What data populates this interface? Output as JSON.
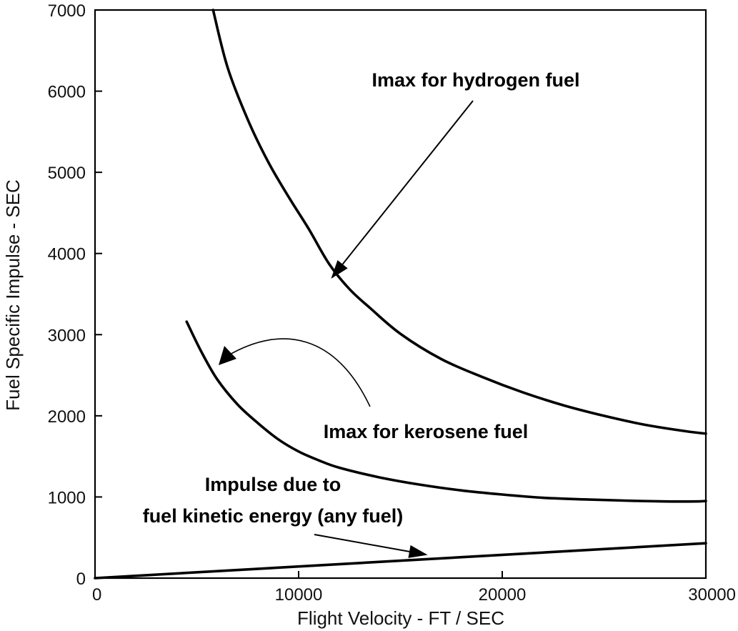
{
  "chart_data": {
    "type": "line",
    "title": "",
    "xlabel": "Flight Velocity - FT / SEC",
    "ylabel": "Fuel Specific Impulse - SEC",
    "xlim": [
      0,
      30000
    ],
    "ylim": [
      0,
      7000
    ],
    "xticks": [
      0,
      10000,
      20000,
      30000
    ],
    "yticks": [
      0,
      1000,
      2000,
      3000,
      4000,
      5000,
      6000,
      7000
    ],
    "xtick_labels": [
      "0",
      "10000",
      "20000",
      "30000"
    ],
    "ytick_labels": [
      "0",
      "1000",
      "2000",
      "3000",
      "4000",
      "5000",
      "6000",
      "7000"
    ],
    "grid": false,
    "series": [
      {
        "name": "Imax for hydrogen fuel",
        "x": [
          5800,
          6500,
          7500,
          8500,
          9500,
          10500,
          11500,
          12500,
          13500,
          15000,
          17000,
          19000,
          21000,
          23000,
          25000,
          27000,
          29000,
          30000
        ],
        "y": [
          7000,
          6300,
          5650,
          5130,
          4700,
          4300,
          3870,
          3560,
          3330,
          3010,
          2700,
          2480,
          2290,
          2130,
          2000,
          1890,
          1810,
          1780
        ]
      },
      {
        "name": "Imax for kerosene fuel",
        "x": [
          4500,
          5200,
          6000,
          7000,
          8000,
          9000,
          10000,
          11000,
          12000,
          14000,
          16000,
          18000,
          20000,
          22000,
          24000,
          26000,
          28000,
          29500,
          30000
        ],
        "y": [
          3160,
          2800,
          2450,
          2140,
          1910,
          1710,
          1560,
          1450,
          1360,
          1240,
          1150,
          1080,
          1030,
          990,
          970,
          955,
          945,
          945,
          950
        ]
      },
      {
        "name": "Impulse due to fuel kinetic energy (any fuel)",
        "x": [
          0,
          30000
        ],
        "y": [
          0,
          430
        ]
      }
    ],
    "annotations": [
      {
        "text": "Imax for hydrogen fuel",
        "points_to": [
          11600,
          3680
        ]
      },
      {
        "text": "Imax for kerosene fuel",
        "points_to": [
          6000,
          2650
        ]
      },
      {
        "text_lines": [
          "Impulse due to",
          "fuel kinetic energy (any fuel)"
        ],
        "points_to": [
          16200,
          265
        ]
      }
    ]
  }
}
